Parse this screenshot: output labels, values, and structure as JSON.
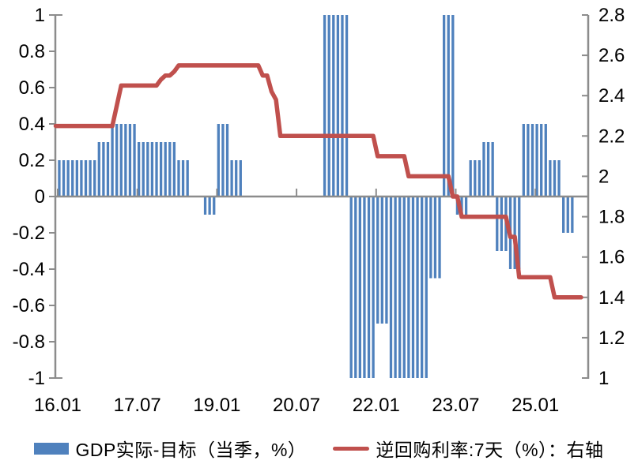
{
  "chart": {
    "background": "#ffffff",
    "axis_color": "#8C8C8C",
    "text_color": "#000000",
    "bar_color": "#4F81BD",
    "line_color": "#C0504D",
    "left_axis": {
      "min": -1,
      "max": 1,
      "step": 0.2,
      "tick_labels": [
        "1",
        "0.8",
        "0.6",
        "0.4",
        "0.2",
        "0",
        "-0.2",
        "-0.4",
        "-0.6",
        "-0.8",
        "-1"
      ]
    },
    "right_axis": {
      "min": 1,
      "max": 2.8,
      "step": 0.2,
      "tick_labels": [
        "2.8",
        "2.6",
        "2.4",
        "2.2",
        "2",
        "1.8",
        "1.6",
        "1.4",
        "1.2",
        "1"
      ]
    },
    "x_axis": {
      "tick_labels": [
        "16.01",
        "17.07",
        "19.01",
        "20.07",
        "22.01",
        "23.07",
        "25.01"
      ],
      "tick_month_index": [
        0,
        18,
        36,
        54,
        72,
        90,
        108
      ]
    }
  },
  "chart_data": {
    "type": "combo",
    "x": [
      "16.01",
      "16.02",
      "16.03",
      "16.04",
      "16.05",
      "16.06",
      "16.07",
      "16.08",
      "16.09",
      "16.10",
      "16.11",
      "16.12",
      "17.01",
      "17.02",
      "17.03",
      "17.04",
      "17.05",
      "17.06",
      "17.07",
      "17.08",
      "17.09",
      "17.10",
      "17.11",
      "17.12",
      "18.01",
      "18.02",
      "18.03",
      "18.04",
      "18.05",
      "18.06",
      "18.07",
      "18.08",
      "18.09",
      "18.10",
      "18.11",
      "18.12",
      "19.01",
      "19.02",
      "19.03",
      "19.04",
      "19.05",
      "19.06",
      "19.07",
      "19.08",
      "19.09",
      "19.10",
      "19.11",
      "19.12",
      "20.01",
      "20.02",
      "20.03",
      "20.04",
      "20.05",
      "20.06",
      "20.07",
      "20.08",
      "20.09",
      "20.10",
      "20.11",
      "20.12",
      "21.01",
      "21.02",
      "21.03",
      "21.04",
      "21.05",
      "21.06",
      "21.07",
      "21.08",
      "21.09",
      "21.10",
      "21.11",
      "21.12",
      "22.01",
      "22.02",
      "22.03",
      "22.04",
      "22.05",
      "22.06",
      "22.07",
      "22.08",
      "22.09",
      "22.10",
      "22.11",
      "22.12",
      "23.01",
      "23.02",
      "23.03",
      "23.04",
      "23.05",
      "23.06",
      "23.07",
      "23.08",
      "23.09",
      "23.10",
      "23.11",
      "23.12",
      "24.01",
      "24.02",
      "24.03",
      "24.04",
      "24.05",
      "24.06",
      "24.07",
      "24.08",
      "24.09",
      "24.10",
      "24.11",
      "24.12",
      "25.01",
      "25.02",
      "25.03",
      "25.04",
      "25.05",
      "25.06",
      "25.07",
      "25.08",
      "25.09",
      "25.10",
      "25.11"
    ],
    "series": [
      {
        "name": "GDP实际-目标（当季，%）",
        "type": "bar",
        "axis": "left",
        "color": "#4F81BD",
        "values": [
          0.2,
          0.2,
          0.2,
          0.2,
          0.2,
          0.2,
          0.2,
          0.2,
          0.2,
          0.3,
          0.3,
          0.3,
          0.4,
          0.4,
          0.4,
          0.4,
          0.4,
          0.4,
          0.3,
          0.3,
          0.3,
          0.3,
          0.3,
          0.3,
          0.3,
          0.3,
          0.3,
          0.2,
          0.2,
          0.2,
          0,
          0,
          0,
          -0.1,
          -0.1,
          -0.1,
          0.4,
          0.4,
          0.4,
          0.2,
          0.2,
          0.2,
          0,
          0,
          0,
          0,
          0,
          0,
          0,
          0,
          0,
          0,
          0,
          0,
          0,
          0,
          0,
          0,
          0,
          0,
          1,
          1,
          1,
          1,
          1,
          1,
          -1,
          -1,
          -1,
          -1,
          -1,
          -1,
          -0.7,
          -0.7,
          -0.7,
          -1,
          -1,
          -1,
          -1,
          -1,
          -1,
          -1,
          -1,
          -1,
          -0.45,
          -0.45,
          -0.45,
          1,
          1,
          1,
          -0.1,
          -0.1,
          -0.1,
          0.2,
          0.2,
          0.2,
          0.3,
          0.3,
          0.3,
          -0.3,
          -0.3,
          -0.3,
          -0.4,
          -0.4,
          -0.4,
          0.4,
          0.4,
          0.4,
          0.4,
          0.4,
          0.4,
          0.2,
          0.2,
          0.2,
          -0.2,
          -0.2,
          -0.2
        ]
      },
      {
        "name": "逆回购利率:7天（%）：右轴",
        "type": "line",
        "axis": "right",
        "color": "#C0504D",
        "values": [
          2.25,
          2.25,
          2.25,
          2.25,
          2.25,
          2.25,
          2.25,
          2.25,
          2.25,
          2.25,
          2.25,
          2.25,
          2.25,
          2.35,
          2.45,
          2.45,
          2.45,
          2.45,
          2.45,
          2.45,
          2.45,
          2.45,
          2.45,
          2.48,
          2.5,
          2.5,
          2.52,
          2.55,
          2.55,
          2.55,
          2.55,
          2.55,
          2.55,
          2.55,
          2.55,
          2.55,
          2.55,
          2.55,
          2.55,
          2.55,
          2.55,
          2.55,
          2.55,
          2.55,
          2.55,
          2.55,
          2.5,
          2.5,
          2.42,
          2.38,
          2.2,
          2.2,
          2.2,
          2.2,
          2.2,
          2.2,
          2.2,
          2.2,
          2.2,
          2.2,
          2.2,
          2.2,
          2.2,
          2.2,
          2.2,
          2.2,
          2.2,
          2.2,
          2.2,
          2.2,
          2.2,
          2.2,
          2.1,
          2.1,
          2.1,
          2.1,
          2.1,
          2.1,
          2.1,
          2.0,
          2.0,
          2.0,
          2.0,
          2.0,
          2.0,
          2.0,
          2.0,
          2.0,
          2.0,
          1.9,
          1.9,
          1.8,
          1.8,
          1.8,
          1.8,
          1.8,
          1.8,
          1.8,
          1.8,
          1.8,
          1.8,
          1.8,
          1.7,
          1.7,
          1.5,
          1.5,
          1.5,
          1.5,
          1.5,
          1.5,
          1.5,
          1.5,
          1.4,
          1.4,
          1.4,
          1.4,
          1.4,
          1.4,
          1.4
        ]
      }
    ]
  },
  "legend": {
    "items": [
      {
        "label": "GDP实际-目标（当季，%）",
        "swatch": "bar",
        "color": "#4F81BD"
      },
      {
        "label": "逆回购利率:7天（%）：右轴",
        "swatch": "line",
        "color": "#C0504D"
      }
    ]
  }
}
